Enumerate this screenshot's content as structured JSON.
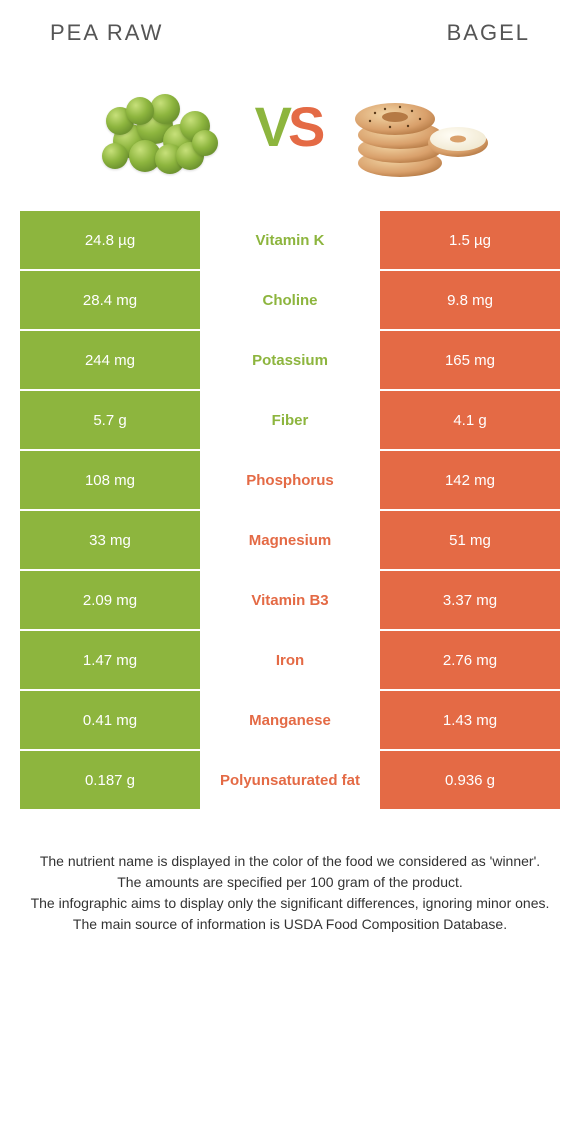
{
  "colors": {
    "left": "#8DB53E",
    "right": "#E46A45",
    "left_food": "#7FAE3A",
    "right_food": "#D9A06B",
    "bg": "#ffffff",
    "mid_bg": "#ffffff",
    "text_dark": "#333333"
  },
  "titles": {
    "left": "PEA RAW",
    "right": "BAGEL"
  },
  "vs": {
    "v": "V",
    "s": "S"
  },
  "rows": [
    {
      "left": "24.8 µg",
      "label": "Vitamin K",
      "right": "1.5 µg",
      "winner": "left"
    },
    {
      "left": "28.4 mg",
      "label": "Choline",
      "right": "9.8 mg",
      "winner": "left"
    },
    {
      "left": "244 mg",
      "label": "Potassium",
      "right": "165 mg",
      "winner": "left"
    },
    {
      "left": "5.7 g",
      "label": "Fiber",
      "right": "4.1 g",
      "winner": "left"
    },
    {
      "left": "108 mg",
      "label": "Phosphorus",
      "right": "142 mg",
      "winner": "right"
    },
    {
      "left": "33 mg",
      "label": "Magnesium",
      "right": "51 mg",
      "winner": "right"
    },
    {
      "left": "2.09 mg",
      "label": "Vitamin B3",
      "right": "3.37 mg",
      "winner": "right"
    },
    {
      "left": "1.47 mg",
      "label": "Iron",
      "right": "2.76 mg",
      "winner": "right"
    },
    {
      "left": "0.41 mg",
      "label": "Manganese",
      "right": "1.43 mg",
      "winner": "right"
    },
    {
      "left": "0.187 g",
      "label": "Polyunsaturated fat",
      "right": "0.936 g",
      "winner": "right"
    }
  ],
  "footer": [
    "The nutrient name is displayed in the color of the food we considered as 'winner'.",
    "The amounts are specified per 100 gram of the product.",
    "The infographic aims to display only the significant differences, ignoring minor ones.",
    "The main source of information is USDA Food Composition Database."
  ]
}
